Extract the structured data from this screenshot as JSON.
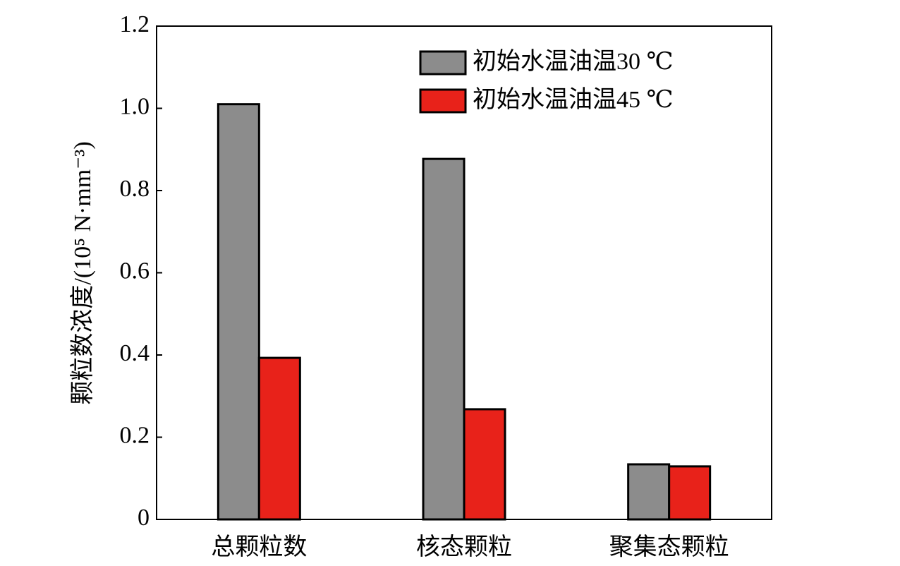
{
  "chart_data": {
    "type": "bar",
    "y_label": "颗粒数浓度/(10⁵ N·mm⁻³)",
    "categories": [
      "总颗粒数",
      "核态颗粒",
      "聚集态颗粒"
    ],
    "series": [
      {
        "name": "初始水温油温30 ℃",
        "color": "#8c8c8c",
        "values": [
          1.01,
          0.877,
          0.134
        ]
      },
      {
        "name": "初始水温油温45 ℃",
        "color": "#e8221a",
        "values": [
          0.393,
          0.268,
          0.129
        ]
      }
    ],
    "ylim": [
      0,
      1.2
    ],
    "yticks": [
      0,
      0.2,
      0.4,
      0.6,
      0.8,
      {
        "value": 1,
        "label": "1.0"
      },
      1.2
    ],
    "legend": "upper right"
  }
}
